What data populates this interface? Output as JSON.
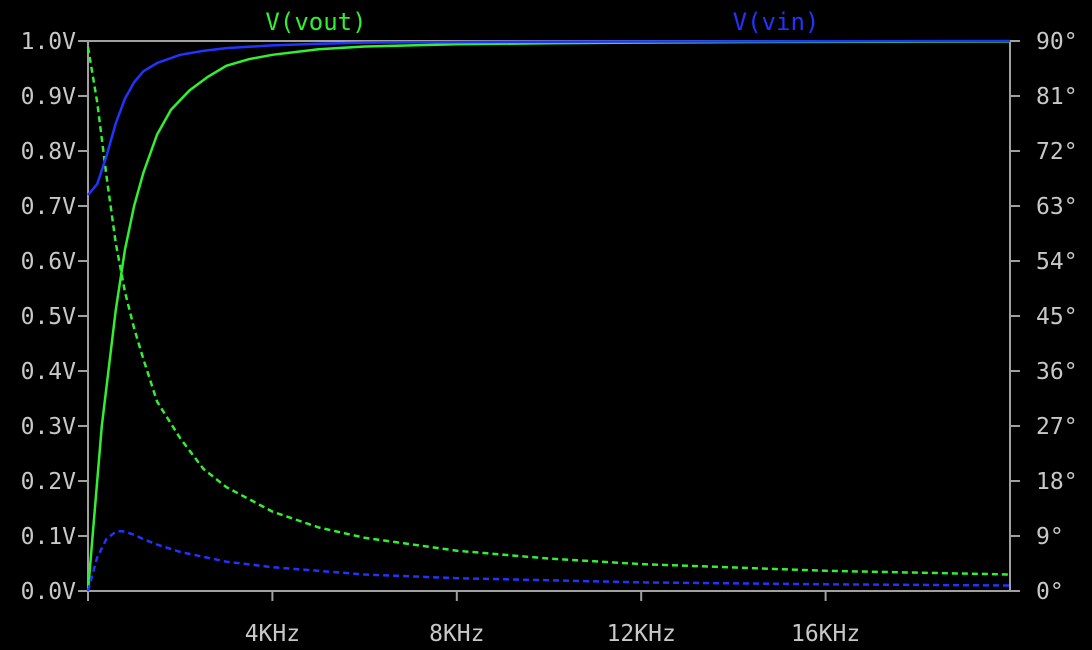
{
  "chart_data": {
    "type": "line",
    "grid": false,
    "background": "#000000",
    "axis_color": "#a0a0a0",
    "label_color": "#c8c8c8",
    "x": {
      "scale": "linear",
      "range_hz": [
        0,
        20000
      ],
      "ticks": [
        4000,
        8000,
        12000,
        16000
      ],
      "tick_labels": [
        "4KHz",
        "8KHz",
        "12KHz",
        "16KHz"
      ]
    },
    "y_left": {
      "range": [
        0,
        1.0
      ],
      "ticks": [
        0,
        0.1,
        0.2,
        0.3,
        0.4,
        0.5,
        0.6,
        0.7,
        0.8,
        0.9,
        1.0
      ],
      "tick_labels": [
        "0.0V",
        "0.1V",
        "0.2V",
        "0.3V",
        "0.4V",
        "0.5V",
        "0.6V",
        "0.7V",
        "0.8V",
        "0.9V",
        "1.0V"
      ]
    },
    "y_right": {
      "range": [
        0,
        90
      ],
      "ticks": [
        0,
        9,
        18,
        27,
        36,
        45,
        54,
        63,
        72,
        81,
        90
      ],
      "tick_labels": [
        "0°",
        "9°",
        "18°",
        "27°",
        "36°",
        "45°",
        "54°",
        "63°",
        "72°",
        "81°",
        "90°"
      ]
    },
    "series": [
      {
        "name": "V(vout)",
        "color": "#33ee33",
        "magnitude": {
          "axis": "left",
          "x": [
            0,
            300,
            600,
            800,
            1000,
            1200,
            1500,
            1800,
            2200,
            2600,
            3000,
            3500,
            4000,
            5000,
            6000,
            8000,
            10000,
            14000,
            20000
          ],
          "y": [
            0.0,
            0.3,
            0.51,
            0.62,
            0.7,
            0.76,
            0.83,
            0.875,
            0.91,
            0.935,
            0.955,
            0.967,
            0.975,
            0.985,
            0.99,
            0.994,
            0.996,
            0.998,
            0.999
          ]
        },
        "phase": {
          "axis": "right",
          "x": [
            0,
            200,
            400,
            600,
            800,
            1000,
            1200,
            1500,
            2000,
            2500,
            3000,
            4000,
            5000,
            6000,
            8000,
            10000,
            12000,
            16000,
            20000
          ],
          "y": [
            89,
            80,
            68,
            57,
            49,
            43,
            38,
            31,
            25,
            20,
            17,
            13,
            10.4,
            8.7,
            6.6,
            5.3,
            4.4,
            3.3,
            2.7
          ]
        }
      },
      {
        "name": "V(vin)",
        "color": "#2233ff",
        "magnitude": {
          "axis": "left",
          "x": [
            0,
            200,
            400,
            600,
            800,
            1000,
            1200,
            1500,
            2000,
            2500,
            3000,
            4000,
            5000,
            6000,
            8000,
            12000,
            20000
          ],
          "y": [
            0.72,
            0.74,
            0.79,
            0.85,
            0.895,
            0.925,
            0.945,
            0.96,
            0.975,
            0.982,
            0.987,
            0.992,
            0.995,
            0.997,
            0.998,
            0.999,
            1.0
          ]
        },
        "phase": {
          "axis": "right",
          "x": [
            0,
            200,
            400,
            600,
            700,
            800,
            1000,
            1200,
            1500,
            2000,
            3000,
            4000,
            6000,
            8000,
            12000,
            16000,
            20000
          ],
          "y": [
            0,
            5.5,
            8.5,
            9.7,
            9.8,
            9.7,
            9.2,
            8.5,
            7.6,
            6.4,
            4.8,
            3.9,
            2.7,
            2.1,
            1.4,
            1.1,
            0.9
          ]
        }
      }
    ]
  }
}
